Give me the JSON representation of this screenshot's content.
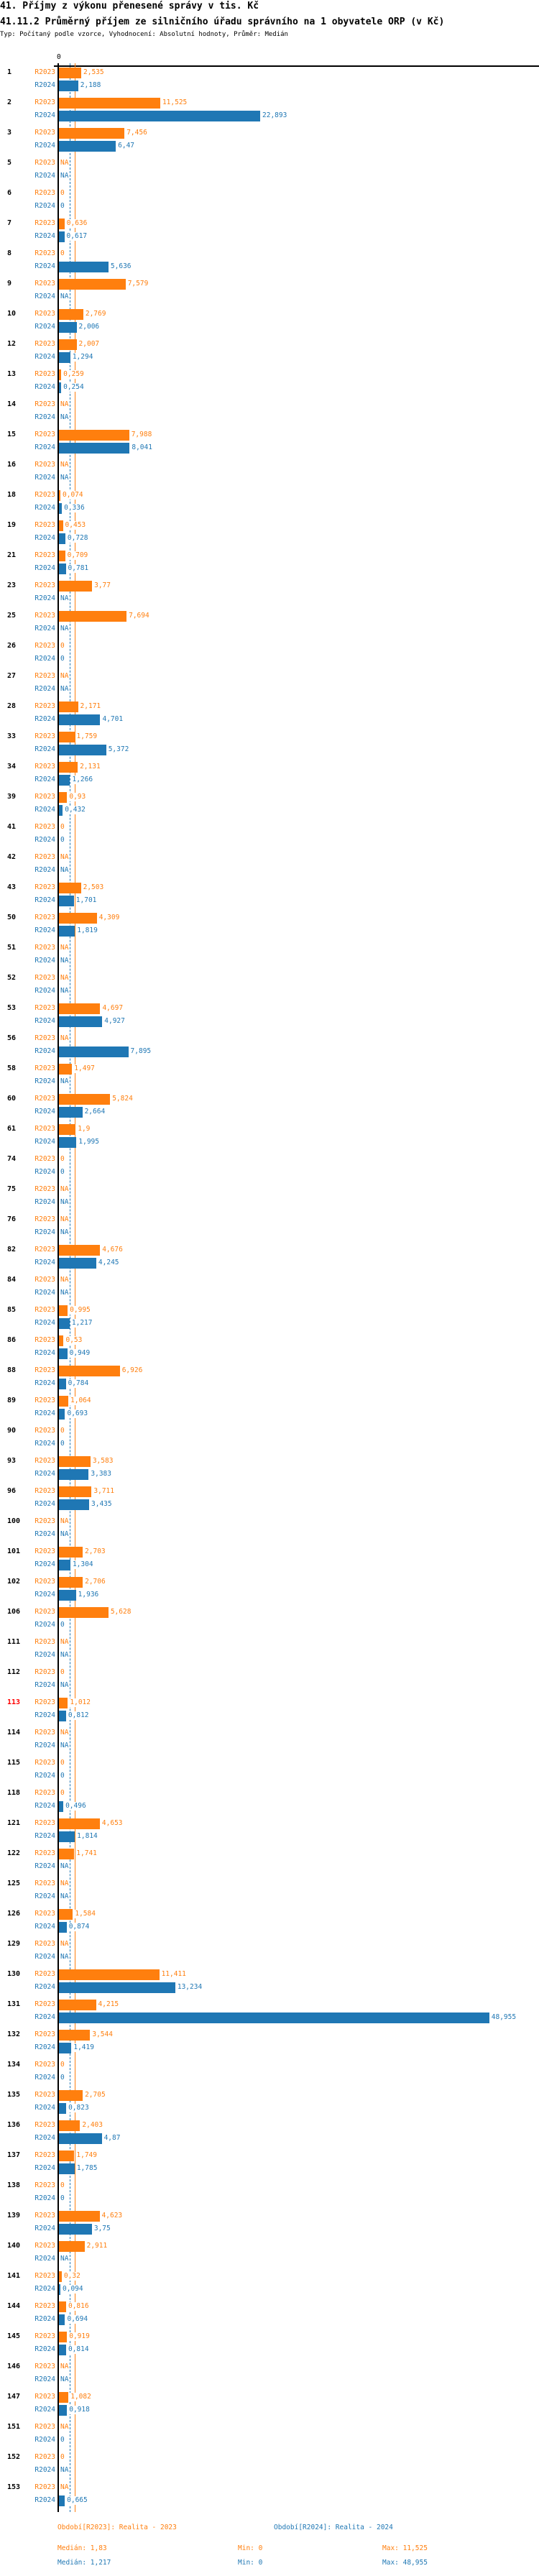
{
  "header": {
    "title": "41. Příjmy z výkonu přenesené správy v tis. Kč",
    "subtitle": "41.11.2 Průměrný příjem ze silničního úřadu správního na 1 obyvatele ORP (v Kč)",
    "info": "Typ: Počítaný podle vzorce, Vyhodnocení: Absolutní hodnoty, Průměr: Medián"
  },
  "chart_data": {
    "type": "bar",
    "orientation": "horizontal",
    "x_tick_labels": [
      "0"
    ],
    "xlim": [
      0,
      48.955
    ],
    "na_label": "NA",
    "colors": {
      "R2023": "#ff7f0e",
      "R2024": "#1f77b4",
      "highlight": "#ff0000",
      "axis": "#000000"
    },
    "highlighted_category": "113",
    "categories": [
      "1",
      "2",
      "3",
      "5",
      "6",
      "7",
      "8",
      "9",
      "10",
      "12",
      "13",
      "14",
      "15",
      "16",
      "18",
      "19",
      "21",
      "23",
      "25",
      "26",
      "27",
      "28",
      "33",
      "34",
      "39",
      "41",
      "42",
      "43",
      "50",
      "51",
      "52",
      "53",
      "56",
      "58",
      "60",
      "61",
      "74",
      "75",
      "76",
      "82",
      "84",
      "85",
      "86",
      "88",
      "89",
      "90",
      "93",
      "96",
      "100",
      "101",
      "102",
      "106",
      "111",
      "112",
      "113",
      "114",
      "115",
      "118",
      "121",
      "122",
      "125",
      "126",
      "129",
      "130",
      "131",
      "132",
      "134",
      "135",
      "136",
      "137",
      "138",
      "139",
      "140",
      "141",
      "144",
      "145",
      "146",
      "147",
      "151",
      "152",
      "153"
    ],
    "series": [
      {
        "name": "R2023",
        "values": [
          2.535,
          11.525,
          7.456,
          null,
          0,
          0.636,
          0,
          7.579,
          2.769,
          2.007,
          0.259,
          null,
          7.988,
          null,
          0.074,
          0.453,
          0.709,
          3.77,
          7.694,
          0,
          null,
          2.171,
          1.759,
          2.131,
          0.93,
          0,
          null,
          2.503,
          4.309,
          null,
          null,
          4.697,
          null,
          1.497,
          5.824,
          1.9,
          0,
          null,
          null,
          4.676,
          null,
          0.995,
          0.53,
          6.926,
          1.064,
          0,
          3.583,
          3.711,
          null,
          2.703,
          2.706,
          5.628,
          null,
          0,
          1.012,
          null,
          0,
          0,
          4.653,
          1.741,
          null,
          1.584,
          null,
          11.411,
          4.215,
          3.544,
          0,
          2.705,
          2.403,
          1.749,
          0,
          4.623,
          2.911,
          0.32,
          0.816,
          0.919,
          null,
          1.082,
          null,
          0,
          null
        ]
      },
      {
        "name": "R2024",
        "values": [
          2.188,
          22.893,
          6.47,
          null,
          0,
          0.617,
          5.636,
          null,
          2.006,
          1.294,
          0.254,
          null,
          8.041,
          null,
          0.336,
          0.728,
          0.781,
          null,
          null,
          0,
          null,
          4.701,
          5.372,
          1.266,
          0.432,
          0,
          null,
          1.701,
          1.819,
          null,
          null,
          4.927,
          7.895,
          null,
          2.664,
          1.995,
          0,
          null,
          null,
          4.245,
          null,
          1.217,
          0.949,
          0.784,
          0.693,
          0,
          3.383,
          3.435,
          null,
          1.304,
          1.936,
          0,
          null,
          null,
          0.812,
          null,
          0,
          0.496,
          1.814,
          null,
          null,
          0.874,
          null,
          13.234,
          48.955,
          1.419,
          0,
          0.823,
          4.87,
          1.785,
          0,
          3.75,
          null,
          0.094,
          0.694,
          0.814,
          null,
          0.918,
          0,
          null,
          0.665
        ]
      }
    ],
    "medians": {
      "R2023": 1.83,
      "R2024": 1.217
    }
  },
  "legend": {
    "r2023": {
      "title": "Období[R2023]: Realita - 2023",
      "median": "Medián: 1,83",
      "min": "Min: 0",
      "max": "Max: 11,525"
    },
    "r2024": {
      "title": "Období[R2024]: Realita - 2024",
      "median": "Medián: 1,217",
      "min": "Min: 0",
      "max": "Max: 48,955"
    }
  }
}
